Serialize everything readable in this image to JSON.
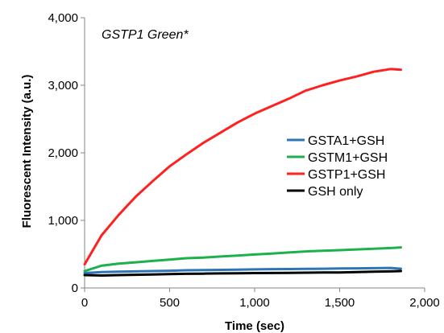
{
  "chart_data": {
    "type": "line",
    "annotation": "GSTP1 Green*",
    "xlabel": "Time (sec)",
    "ylabel": "Fluorescent Intensity (a.u.)",
    "xlim": [
      0,
      2000
    ],
    "ylim": [
      0,
      4000
    ],
    "xticks": [
      0,
      500,
      1000,
      1500,
      2000
    ],
    "yticks": [
      0,
      1000,
      2000,
      3000,
      4000
    ],
    "xtick_labels": [
      "0",
      "500",
      "1,000",
      "1,500",
      "2,000"
    ],
    "ytick_labels": [
      "0",
      "1,000",
      "2,000",
      "3,000",
      "4,000"
    ],
    "grid": false,
    "legend_position": "center-right",
    "x": [
      0,
      100,
      200,
      300,
      400,
      500,
      600,
      700,
      800,
      900,
      1000,
      1100,
      1200,
      1300,
      1400,
      1500,
      1600,
      1700,
      1800,
      1860
    ],
    "series": [
      {
        "name": "GSTA1+GSH",
        "color": "#2e75b6",
        "values": [
          220,
          235,
          240,
          245,
          250,
          255,
          262,
          265,
          268,
          272,
          275,
          278,
          280,
          282,
          285,
          288,
          290,
          293,
          296,
          285
        ]
      },
      {
        "name": "GSTM1+GSH",
        "color": "#1db14b",
        "values": [
          250,
          330,
          360,
          380,
          400,
          420,
          440,
          450,
          465,
          480,
          495,
          510,
          525,
          540,
          550,
          560,
          570,
          580,
          590,
          600
        ]
      },
      {
        "name": "GSTP1+GSH",
        "color": "#ff2020",
        "values": [
          350,
          780,
          1080,
          1350,
          1580,
          1800,
          1980,
          2150,
          2300,
          2450,
          2580,
          2690,
          2800,
          2920,
          3000,
          3070,
          3130,
          3200,
          3240,
          3230
        ]
      },
      {
        "name": "GSH only",
        "color": "#000000",
        "values": [
          190,
          185,
          190,
          195,
          200,
          205,
          210,
          212,
          215,
          218,
          220,
          222,
          224,
          226,
          228,
          230,
          235,
          240,
          245,
          250
        ]
      }
    ]
  }
}
